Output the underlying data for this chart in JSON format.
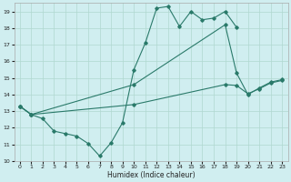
{
  "xlabel": "Humidex (Indice chaleur)",
  "xlim": [
    -0.5,
    23.5
  ],
  "ylim": [
    10,
    19.5
  ],
  "xticks": [
    0,
    1,
    2,
    3,
    4,
    5,
    6,
    7,
    8,
    9,
    10,
    11,
    12,
    13,
    14,
    15,
    16,
    17,
    18,
    19,
    20,
    21,
    22,
    23
  ],
  "yticks": [
    10,
    11,
    12,
    13,
    14,
    15,
    16,
    17,
    18,
    19
  ],
  "line_color": "#2a7a6a",
  "bg_color": "#d0eef0",
  "grid_color": "#b0d8d0",
  "line1_x": [
    0,
    1,
    2,
    3,
    4,
    5,
    6,
    7,
    8,
    9,
    10,
    11,
    12,
    13,
    14,
    15,
    16,
    17,
    18,
    19
  ],
  "line1_y": [
    13.3,
    12.8,
    12.55,
    11.8,
    11.65,
    11.5,
    11.05,
    10.3,
    11.1,
    12.3,
    15.5,
    17.1,
    19.2,
    19.3,
    18.1,
    19.0,
    18.5,
    18.6,
    19.0,
    18.05
  ],
  "line2_x": [
    0,
    1,
    10,
    18,
    19,
    20,
    21,
    22,
    23
  ],
  "line2_y": [
    13.3,
    12.8,
    14.6,
    18.2,
    15.3,
    14.0,
    14.4,
    14.75,
    14.9
  ],
  "line3_x": [
    0,
    1,
    10,
    18,
    19,
    20,
    21,
    22,
    23
  ],
  "line3_y": [
    13.3,
    12.8,
    13.4,
    14.6,
    14.55,
    14.05,
    14.35,
    14.7,
    14.85
  ]
}
